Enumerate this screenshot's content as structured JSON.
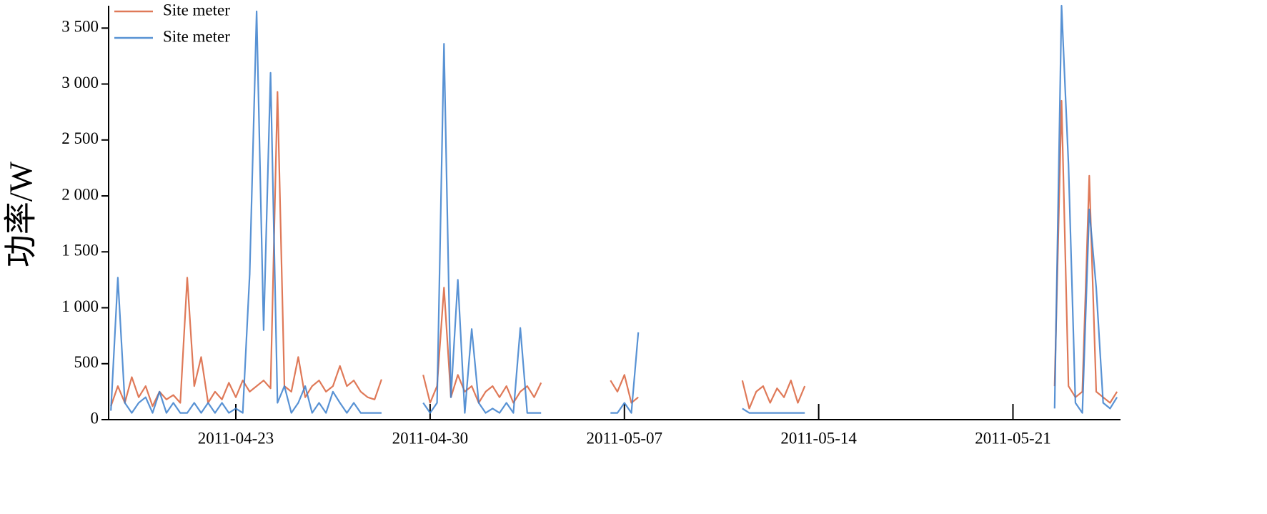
{
  "chart_data": {
    "type": "line",
    "y_label": "功率/W",
    "x": [
      "2011-04-18 12:00",
      "2011-04-18 18:00",
      "2011-04-19 00:00",
      "2011-04-19 06:00",
      "2011-04-19 12:00",
      "2011-04-19 18:00",
      "2011-04-20 00:00",
      "2011-04-20 06:00",
      "2011-04-20 12:00",
      "2011-04-20 18:00",
      "2011-04-21 00:00",
      "2011-04-21 06:00",
      "2011-04-21 12:00",
      "2011-04-21 18:00",
      "2011-04-22 00:00",
      "2011-04-22 06:00",
      "2011-04-22 12:00",
      "2011-04-22 18:00",
      "2011-04-23 00:00",
      "2011-04-23 06:00",
      "2011-04-23 12:00",
      "2011-04-23 18:00",
      "2011-04-24 00:00",
      "2011-04-24 06:00",
      "2011-04-24 12:00",
      "2011-04-24 18:00",
      "2011-04-25 00:00",
      "2011-04-25 06:00",
      "2011-04-25 12:00",
      "2011-04-25 18:00",
      "2011-04-26 00:00",
      "2011-04-26 06:00",
      "2011-04-26 12:00",
      "2011-04-26 18:00",
      "2011-04-27 00:00",
      "2011-04-27 06:00",
      "2011-04-27 12:00",
      "2011-04-27 18:00",
      "2011-04-28 00:00",
      "2011-04-28 06:00",
      "2011-04-29 00:00",
      "2011-04-29 18:00",
      "2011-04-30 00:00",
      "2011-04-30 06:00",
      "2011-04-30 12:00",
      "2011-04-30 18:00",
      "2011-05-01 00:00",
      "2011-05-01 06:00",
      "2011-05-01 12:00",
      "2011-05-01 18:00",
      "2011-05-02 00:00",
      "2011-05-02 06:00",
      "2011-05-02 12:00",
      "2011-05-02 18:00",
      "2011-05-03 00:00",
      "2011-05-03 06:00",
      "2011-05-03 12:00",
      "2011-05-03 18:00",
      "2011-05-04 00:00",
      "2011-05-05 00:00",
      "2011-05-06 12:00",
      "2011-05-06 18:00",
      "2011-05-07 00:00",
      "2011-05-07 06:00",
      "2011-05-07 12:00",
      "2011-05-09 00:00",
      "2011-05-11 06:00",
      "2011-05-11 12:00",
      "2011-05-11 18:00",
      "2011-05-12 00:00",
      "2011-05-12 06:00",
      "2011-05-12 12:00",
      "2011-05-12 18:00",
      "2011-05-13 00:00",
      "2011-05-13 06:00",
      "2011-05-13 12:00",
      "2011-05-18 00:00",
      "2011-05-22 12:00",
      "2011-05-22 18:00",
      "2011-05-23 00:00",
      "2011-05-23 06:00",
      "2011-05-23 12:00",
      "2011-05-23 18:00",
      "2011-05-24 00:00",
      "2011-05-24 06:00",
      "2011-05-24 12:00",
      "2011-05-24 18:00"
    ],
    "series": [
      {
        "name": "Site meter",
        "color": "#d9623b",
        "values": [
          120,
          300,
          150,
          380,
          200,
          300,
          120,
          250,
          180,
          220,
          150,
          1270,
          300,
          560,
          150,
          250,
          180,
          330,
          200,
          350,
          250,
          300,
          350,
          280,
          2930,
          300,
          250,
          560,
          200,
          300,
          350,
          250,
          300,
          480,
          300,
          350,
          250,
          200,
          180,
          360,
          null,
          400,
          150,
          300,
          1180,
          200,
          400,
          250,
          300,
          150,
          250,
          300,
          200,
          300,
          150,
          250,
          300,
          200,
          330,
          null,
          350,
          250,
          400,
          150,
          200,
          null,
          350,
          100,
          250,
          300,
          150,
          280,
          200,
          350,
          150,
          300,
          null,
          300,
          2850,
          300,
          200,
          250,
          2180,
          250,
          200,
          150,
          250
        ]
      },
      {
        "name": "Site meter",
        "color": "#3b7fcc",
        "values": [
          80,
          1270,
          150,
          60,
          150,
          200,
          60,
          250,
          60,
          150,
          60,
          60,
          150,
          60,
          150,
          60,
          150,
          60,
          100,
          60,
          1300,
          3650,
          800,
          3100,
          150,
          300,
          60,
          150,
          300,
          60,
          150,
          60,
          250,
          150,
          60,
          150,
          60,
          60,
          60,
          60,
          null,
          150,
          60,
          150,
          3360,
          200,
          1250,
          60,
          810,
          150,
          60,
          100,
          60,
          150,
          60,
          820,
          60,
          60,
          60,
          null,
          60,
          60,
          150,
          60,
          780,
          null,
          100,
          60,
          60,
          60,
          60,
          60,
          60,
          60,
          60,
          60,
          null,
          100,
          3700,
          2280,
          150,
          60,
          1880,
          1180,
          150,
          100,
          200
        ]
      }
    ],
    "xlim": [
      "2011-04-18 10:00",
      "2011-05-24 21:00"
    ],
    "xticks": [
      "2011-04-23",
      "2011-04-30",
      "2011-05-07",
      "2011-05-14",
      "2011-05-21"
    ],
    "ylim": [
      0,
      3700
    ],
    "yticks": [
      0,
      500,
      {
        "value": 1000,
        "label": "1 000"
      },
      {
        "value": 1500,
        "label": "1 500"
      },
      {
        "value": 2000,
        "label": "2 000"
      },
      {
        "value": 2500,
        "label": "2 500"
      },
      {
        "value": 3000,
        "label": "3 000"
      },
      {
        "value": 3500,
        "label": "3 500"
      }
    ],
    "grid": false,
    "legend": "upper left"
  }
}
